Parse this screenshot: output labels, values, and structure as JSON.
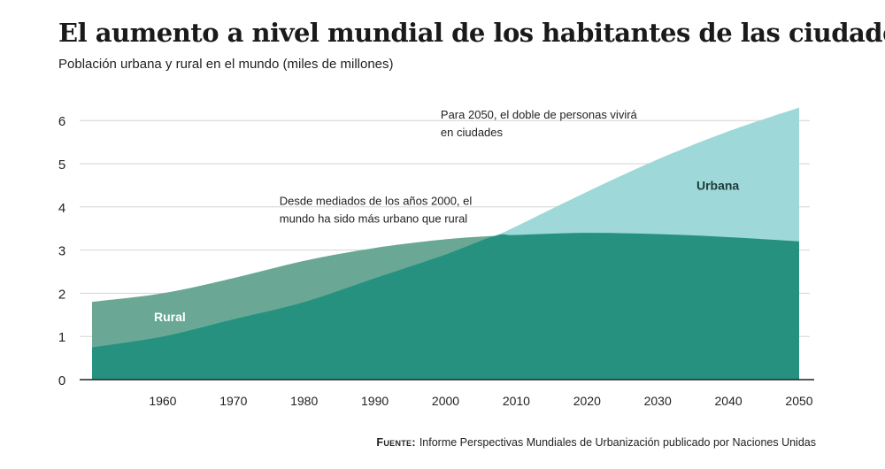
{
  "title": "El aumento a nivel mundial de los habitantes de las ciudades",
  "subtitle": "Población urbana y rural en el mundo (miles de millones)",
  "source_label": "Fuente:",
  "source_text": "Informe Perspectivas Mundiales de Urbanización publicado por Naciones Unidas",
  "chart_data": {
    "type": "area",
    "title": "El aumento a nivel mundial de los habitantes de las ciudades",
    "subtitle": "Población urbana y rural en el mundo (miles de millones)",
    "x": [
      1950,
      1960,
      1970,
      1980,
      1990,
      2000,
      2007,
      2010,
      2020,
      2030,
      2040,
      2050
    ],
    "series": [
      {
        "name": "Rural",
        "color": "#6aa895",
        "values": [
          1.8,
          2.0,
          2.35,
          2.75,
          3.05,
          3.25,
          3.33,
          3.35,
          3.4,
          3.37,
          3.3,
          3.2
        ]
      },
      {
        "name": "Urbana",
        "color": "#9fd8d8",
        "values": [
          0.75,
          1.0,
          1.4,
          1.8,
          2.35,
          2.9,
          3.33,
          3.55,
          4.35,
          5.1,
          5.75,
          6.3
        ]
      }
    ],
    "overlap_color": "#26917f",
    "xticks": [
      "1960",
      "1970",
      "1980",
      "1990",
      "2000",
      "2010",
      "2020",
      "2030",
      "2040",
      "2050"
    ],
    "yticks": [
      "0",
      "1",
      "2",
      "3",
      "4",
      "5",
      "6"
    ],
    "xlim": [
      1950,
      2050
    ],
    "ylim": [
      0,
      6.5
    ],
    "grid": true,
    "annotations": [
      {
        "x": 2000,
        "y": 4.05,
        "lines": [
          "Desde mediados de los años 2000, el",
          "mundo ha sido más urbano que rural"
        ]
      },
      {
        "x": 2030,
        "y": 6.05,
        "lines": [
          "Para 2050, el doble de personas vivirá",
          "en ciudades"
        ]
      }
    ]
  }
}
